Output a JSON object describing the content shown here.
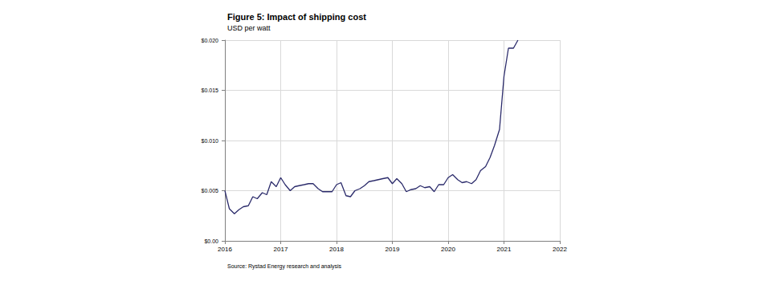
{
  "chart_data": {
    "type": "line",
    "title": "Figure 5: Impact of shipping cost",
    "subtitle": "USD per watt",
    "source": "Source: Rystad Energy research and analysis",
    "x": [
      2016.0,
      2016.08,
      2016.17,
      2016.25,
      2016.33,
      2016.42,
      2016.5,
      2016.58,
      2016.67,
      2016.75,
      2016.83,
      2016.92,
      2017.0,
      2017.08,
      2017.17,
      2017.25,
      2017.33,
      2017.42,
      2017.5,
      2017.58,
      2017.67,
      2017.75,
      2017.83,
      2017.92,
      2018.0,
      2018.08,
      2018.17,
      2018.25,
      2018.33,
      2018.42,
      2018.5,
      2018.58,
      2018.67,
      2018.75,
      2018.83,
      2018.92,
      2019.0,
      2019.08,
      2019.17,
      2019.25,
      2019.33,
      2019.42,
      2019.5,
      2019.58,
      2019.67,
      2019.75,
      2019.83,
      2019.92,
      2020.0,
      2020.08,
      2020.17,
      2020.25,
      2020.33,
      2020.42,
      2020.5,
      2020.58,
      2020.67,
      2020.75,
      2020.83,
      2020.92,
      2021.0,
      2021.08,
      2021.17,
      2021.25
    ],
    "values": [
      0.005,
      0.0032,
      0.0027,
      0.0031,
      0.0034,
      0.0035,
      0.0044,
      0.0042,
      0.0048,
      0.0046,
      0.0059,
      0.0054,
      0.0063,
      0.0056,
      0.005,
      0.0054,
      0.0055,
      0.0056,
      0.0057,
      0.0057,
      0.0052,
      0.0049,
      0.0049,
      0.0049,
      0.0056,
      0.0058,
      0.0045,
      0.0044,
      0.005,
      0.0052,
      0.0055,
      0.0059,
      0.006,
      0.0061,
      0.0062,
      0.0063,
      0.0057,
      0.0062,
      0.0057,
      0.0049,
      0.0051,
      0.0052,
      0.0055,
      0.0053,
      0.0054,
      0.0049,
      0.0056,
      0.0056,
      0.0063,
      0.0066,
      0.0061,
      0.0058,
      0.0059,
      0.0057,
      0.0061,
      0.007,
      0.0074,
      0.0083,
      0.0095,
      0.0111,
      0.0164,
      0.0192,
      0.0192,
      0.02
    ],
    "color": "#2b2b6b",
    "xlim": [
      2016,
      2022
    ],
    "xticks": [
      2016,
      2017,
      2018,
      2019,
      2020,
      2021,
      2022
    ],
    "ylim": [
      0,
      0.02
    ],
    "yticks": [
      {
        "value": 0,
        "label": "$0.00"
      },
      {
        "value": 0.005,
        "label": "$0.005"
      },
      {
        "value": 0.01,
        "label": "$0.010"
      },
      {
        "value": 0.015,
        "label": "$0.015"
      },
      {
        "value": 0.02,
        "label": "$0.020"
      }
    ],
    "grid": true
  }
}
